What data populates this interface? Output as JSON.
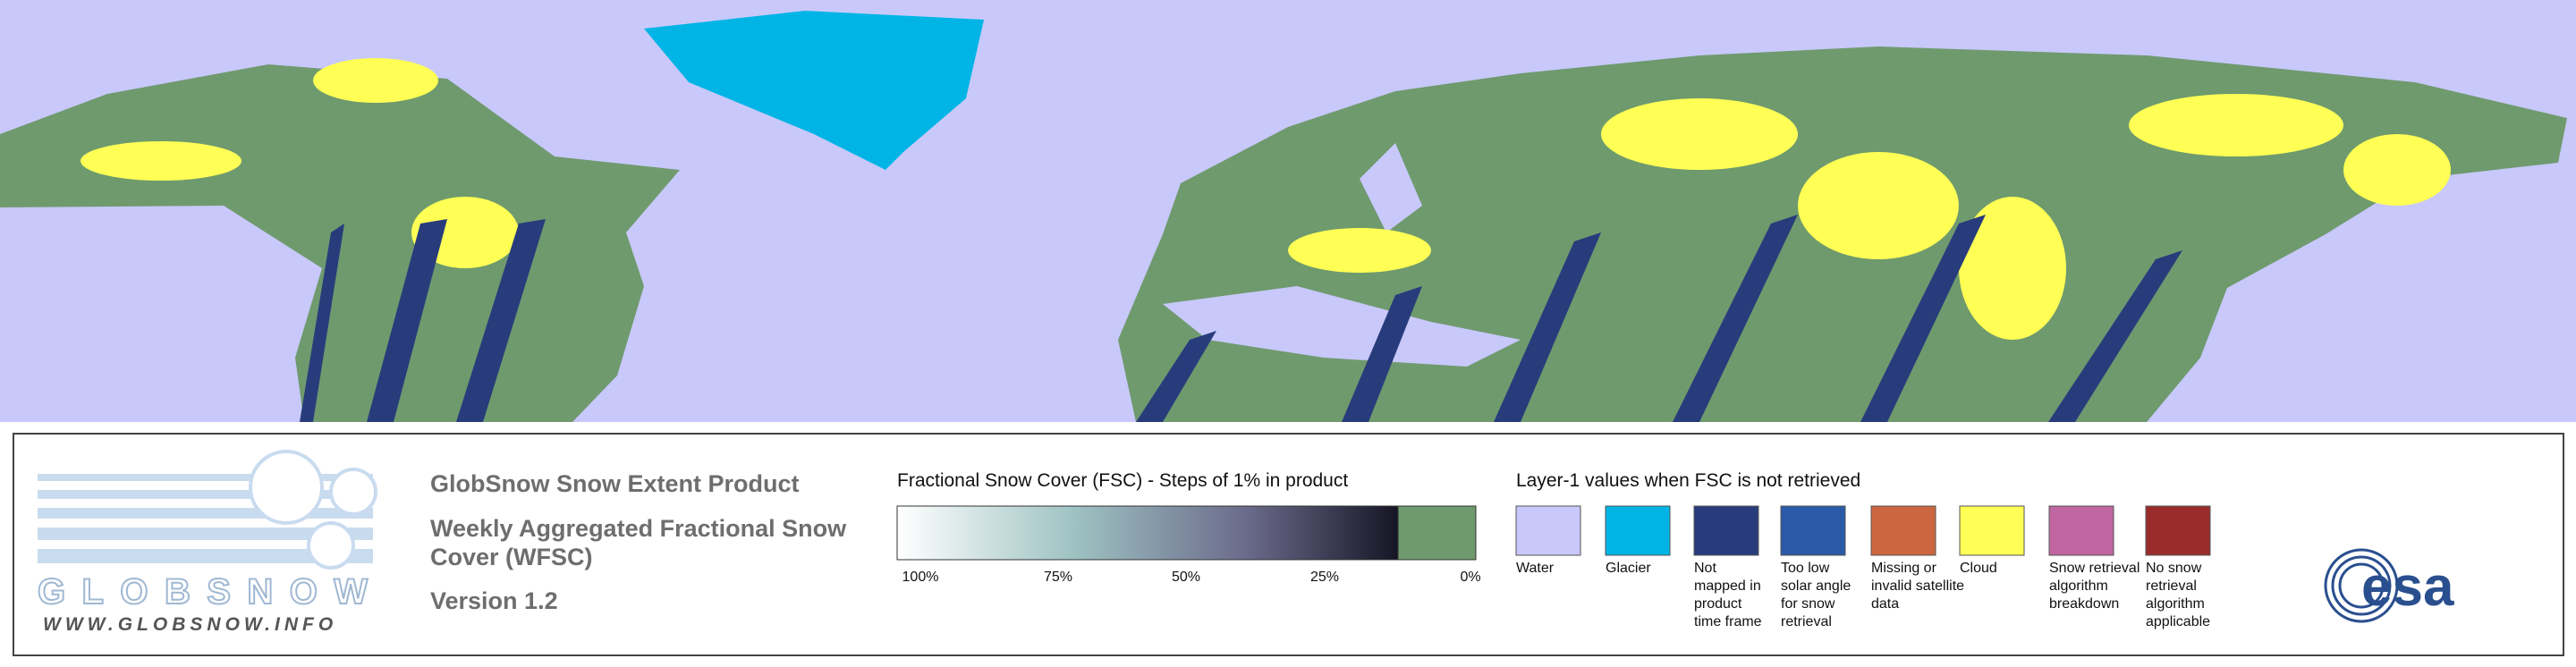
{
  "header": {
    "title": "GlobSnow Snow Extent Product",
    "subtitle_lines": [
      "Weekly Aggregated Fractional Snow",
      "Cover (WFSC)"
    ],
    "version": "Version 1.2"
  },
  "logo": {
    "name": "GLOBSNOW",
    "url": "WWW.GLOBSNOW.INFO",
    "agency": "esa"
  },
  "fsc_legend": {
    "title": "Fractional Snow Cover (FSC) - Steps of 1% in product",
    "ticks": [
      "100%",
      "75%",
      "50%",
      "25%",
      "0%"
    ]
  },
  "layer1_legend": {
    "title": "Layer-1 values when FSC is not retrieved",
    "items": [
      {
        "color": "#c8c8fa",
        "label": [
          "Water"
        ]
      },
      {
        "color": "#00b4e6",
        "label": [
          "Glacier"
        ]
      },
      {
        "color": "#283c7c",
        "label": [
          "Not",
          "mapped in",
          "product",
          "time frame"
        ]
      },
      {
        "color": "#2a5aa8",
        "label": [
          "Too low",
          "solar angle",
          "for snow",
          "retrieval"
        ]
      },
      {
        "color": "#cc6640",
        "label": [
          "Missing or",
          "invalid satellite",
          "data"
        ]
      },
      {
        "color": "#ffff55",
        "label": [
          "Cloud"
        ]
      },
      {
        "color": "#c066a0",
        "label": [
          "Snow retrieval",
          "algorithm",
          "breakdown"
        ]
      },
      {
        "color": "#9a2c2c",
        "label": [
          "No snow",
          "retrieval",
          "algorithm",
          "applicable"
        ]
      }
    ]
  }
}
